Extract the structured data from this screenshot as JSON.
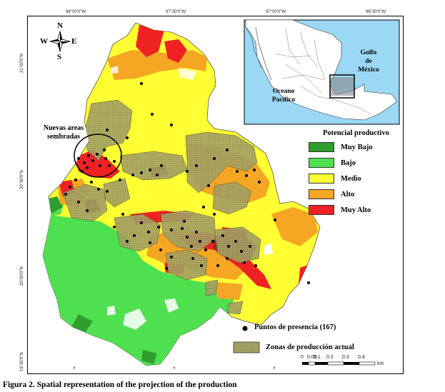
{
  "coordinates": {
    "top": [
      "98°00'0\"W",
      "97°30'0\"W",
      "97°00'0\"W",
      "96°30'0\"W"
    ],
    "left": [
      "21°00'0\"N",
      "20°30'0\"N",
      "20°00'0\"N",
      "19°30'0\"N"
    ]
  },
  "compass": {
    "n": "N",
    "s": "S",
    "e": "E",
    "w": "W"
  },
  "callout": {
    "line1": "Nuevas areas",
    "line2": "sembradas"
  },
  "inset": {
    "gulf_line1": "Golfo",
    "gulf_line2": "de",
    "gulf_line3": "México",
    "ocean_line1": "Oceano",
    "ocean_line2": "Pacífico"
  },
  "legend": {
    "title": "Potencial productivo",
    "items": [
      {
        "label": "Muy Bajo",
        "color": "#2f9e2f"
      },
      {
        "label": "Bajo",
        "color": "#4fe04f"
      },
      {
        "label": "Medio",
        "color": "#ffff33"
      },
      {
        "label": "Alto",
        "color": "#f5a623"
      },
      {
        "label": "Muy Alto",
        "color": "#ee2222"
      }
    ]
  },
  "points_label": "Puntos de presencia (167)",
  "zones_label": "Zonas de producción actual",
  "zones_color": "#a6a366",
  "scale": {
    "ticks": [
      "0",
      "0.05",
      "0.1",
      "0.2",
      "0.3",
      "0.4"
    ],
    "unit": "km"
  },
  "caption": "Figura 2. Spatial representation of the projection of the production"
}
